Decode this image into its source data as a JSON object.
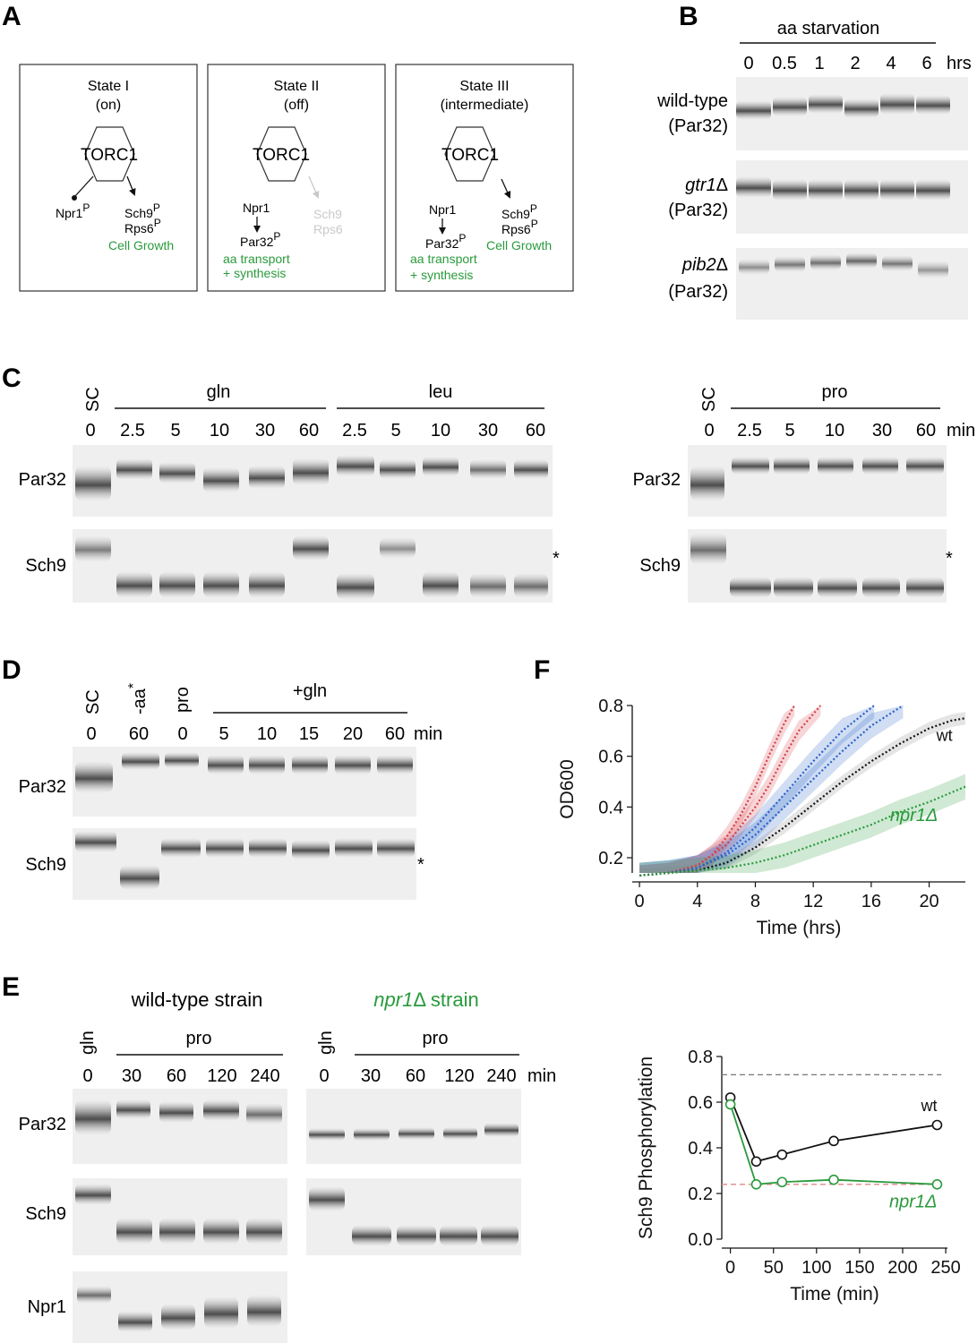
{
  "panel_labels": {
    "a": "A",
    "b": "B",
    "c": "C",
    "d": "D",
    "e": "E",
    "f": "F"
  },
  "panelA": {
    "states": [
      {
        "title": "State I",
        "subtitle": "(on)",
        "hub": "TORC1",
        "left_node": "Npr1",
        "left_sup": "P",
        "right_1": "Sch9",
        "right_1_sup": "P",
        "right_2": "Rps6",
        "right_2_sup": "P",
        "right_caption": "Cell Growth"
      },
      {
        "title": "State II",
        "subtitle": "(off)",
        "hub": "TORC1",
        "left_node": "Npr1",
        "left_target": "Par32",
        "left_target_sup": "P",
        "left_caption_1": "aa transport",
        "left_caption_2": "+ synthesis",
        "right_1": "Sch9",
        "right_2": "Rps6"
      },
      {
        "title": "State III",
        "subtitle": "(intermediate)",
        "hub": "TORC1",
        "left_node": "Npr1",
        "left_target": "Par32",
        "left_target_sup": "P",
        "left_caption_1": "aa transport",
        "left_caption_2": "+ synthesis",
        "right_1": "Sch9",
        "right_1_sup": "P",
        "right_2": "Rps6",
        "right_2_sup": "P",
        "right_caption": "Cell Growth"
      }
    ]
  },
  "panelB": {
    "header": "aa starvation",
    "times": [
      "0",
      "0.5",
      "1",
      "2",
      "4",
      "6"
    ],
    "unit": "hrs",
    "rows": [
      {
        "name": "wild-type",
        "name_italic": false,
        "protein": "(Par32)"
      },
      {
        "name": "gtr1",
        "name_italic": true,
        "delta": "Δ",
        "protein": "(Par32)"
      },
      {
        "name": "pib2",
        "name_italic": true,
        "delta": "Δ",
        "protein": "(Par32)"
      }
    ]
  },
  "panelC": {
    "left": {
      "sc_label": "SC",
      "groups": [
        "gln",
        "leu"
      ],
      "times": [
        "0",
        "2.5",
        "5",
        "10",
        "30",
        "60",
        "2.5",
        "5",
        "10",
        "30",
        "60"
      ]
    },
    "right": {
      "sc_label": "SC",
      "group": "pro",
      "times": [
        "0",
        "2.5",
        "5",
        "10",
        "30",
        "60"
      ],
      "unit": "min"
    },
    "rows": [
      "Par32",
      "Sch9"
    ],
    "asterisk": "*"
  },
  "panelD": {
    "lanes": [
      "SC",
      "-aa",
      "pro"
    ],
    "aa_star": "*",
    "group": "+gln",
    "times": [
      "0",
      "60",
      "0",
      "5",
      "10",
      "15",
      "20",
      "60"
    ],
    "unit": "min",
    "rows": [
      "Par32",
      "Sch9"
    ],
    "asterisk": "*"
  },
  "panelE": {
    "wt_title": "wild-type strain",
    "npr_title_gene": "npr1",
    "npr_title_delta": "Δ",
    "npr_title_rest": " strain",
    "first_lane": "gln",
    "group": "pro",
    "times": [
      "0",
      "30",
      "60",
      "120",
      "240"
    ],
    "unit": "min",
    "rows": [
      "Par32",
      "Sch9",
      "Npr1"
    ]
  },
  "colors": {
    "green": "#2a9a3c",
    "red": "#d8404a",
    "blue": "#2a62c8",
    "grey_text": "#c9c9c9"
  },
  "chart_data": [
    {
      "id": "F",
      "type": "line",
      "xlabel": "Time (hrs)",
      "ylabel": "OD600",
      "xlim": [
        -0.5,
        22.5
      ],
      "ylim": [
        0.14,
        0.8
      ],
      "xticks": [
        0,
        4,
        8,
        12,
        16,
        20
      ],
      "yticks": [
        0.2,
        0.4,
        0.6,
        0.8
      ],
      "grid": false,
      "series": [
        {
          "name": "",
          "color": "#d8404a",
          "x": [
            0,
            2,
            4,
            5,
            6,
            7,
            8,
            9,
            10,
            10.7
          ],
          "y": [
            0.13,
            0.14,
            0.17,
            0.21,
            0.28,
            0.37,
            0.48,
            0.61,
            0.73,
            0.8
          ],
          "band": 0.04
        },
        {
          "name": "",
          "color": "#d8404a",
          "x": [
            0,
            2,
            4,
            6,
            8,
            9,
            10,
            11,
            12.5
          ],
          "y": [
            0.13,
            0.14,
            0.17,
            0.25,
            0.4,
            0.49,
            0.6,
            0.7,
            0.8
          ],
          "band": 0.04
        },
        {
          "name": "",
          "color": "#2a62c8",
          "x": [
            0,
            2,
            4,
            6,
            8,
            10,
            12,
            14,
            16.2
          ],
          "y": [
            0.13,
            0.14,
            0.16,
            0.22,
            0.32,
            0.45,
            0.58,
            0.7,
            0.8
          ],
          "band": 0.05
        },
        {
          "name": "",
          "color": "#2a62c8",
          "x": [
            0,
            2,
            4,
            6,
            8,
            10,
            12,
            14,
            16,
            18.2
          ],
          "y": [
            0.13,
            0.14,
            0.16,
            0.21,
            0.29,
            0.4,
            0.51,
            0.62,
            0.72,
            0.8
          ],
          "band": 0.05
        },
        {
          "name": "wt",
          "color": "#111111",
          "x": [
            0,
            2,
            4,
            6,
            8,
            10,
            12,
            14,
            16,
            18,
            20,
            21.5,
            22.5
          ],
          "y": [
            0.13,
            0.14,
            0.15,
            0.18,
            0.24,
            0.32,
            0.41,
            0.5,
            0.58,
            0.65,
            0.71,
            0.74,
            0.75
          ],
          "band": 0.025
        },
        {
          "name": "npr1Δ",
          "color": "#2a9a3c",
          "x": [
            0,
            2,
            4,
            6,
            8,
            10,
            12,
            14,
            16,
            18,
            20,
            22.5
          ],
          "y": [
            0.13,
            0.14,
            0.15,
            0.16,
            0.18,
            0.21,
            0.25,
            0.29,
            0.33,
            0.38,
            0.42,
            0.48
          ],
          "band": 0.05
        }
      ]
    },
    {
      "id": "E-quant",
      "type": "line",
      "xlabel": "Time (min)",
      "ylabel": "Sch9 Phosphorylation",
      "xlim": [
        -10,
        252
      ],
      "ylim": [
        0,
        0.8
      ],
      "xticks": [
        0,
        50,
        100,
        150,
        200,
        250
      ],
      "yticks": [
        0.0,
        0.2,
        0.4,
        0.6,
        0.8
      ],
      "grid": false,
      "reference_lines": [
        {
          "y": 0.72,
          "color": "#777777"
        },
        {
          "y": 0.24,
          "color": "#e08888"
        }
      ],
      "series": [
        {
          "name": "wt",
          "color": "#111111",
          "x": [
            0,
            30,
            60,
            120,
            240
          ],
          "y": [
            0.62,
            0.34,
            0.37,
            0.43,
            0.5
          ]
        },
        {
          "name": "npr1Δ",
          "color": "#2a9a3c",
          "x": [
            0,
            30,
            60,
            120,
            240
          ],
          "y": [
            0.59,
            0.24,
            0.25,
            0.26,
            0.24
          ]
        }
      ]
    }
  ]
}
